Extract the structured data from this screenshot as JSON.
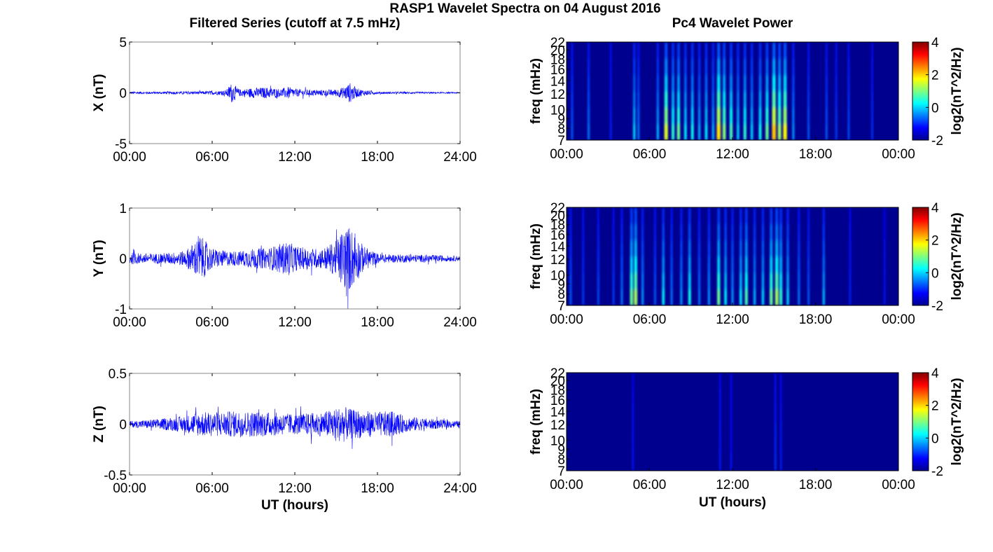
{
  "title": "RASP1 Wavelet Spectra on 04 August 2016",
  "left_column_title": "Filtered Series (cutoff at 7.5 mHz)",
  "right_column_title": "Pc4 Wavelet Power",
  "x_axis_label": "UT (hours)",
  "chart_data": [
    {
      "type": "line",
      "name": "X",
      "ylabel": "X (nT)",
      "ylim": [
        -5,
        5
      ],
      "yticks": [
        -5,
        0,
        5
      ],
      "ytick_labels": [
        "-5",
        "0",
        "5"
      ],
      "xlim": [
        0,
        24
      ],
      "xticks": [
        0,
        6,
        12,
        18,
        24
      ],
      "xtick_labels": [
        "00:00",
        "06:00",
        "12:00",
        "18:00",
        "24:00"
      ],
      "color": "#0000ff",
      "baseline_amplitude": 0.1,
      "series": [
        {
          "x": [
            0,
            2,
            4,
            5,
            6,
            7,
            7.4,
            8,
            9,
            10,
            11,
            11.5,
            12,
            13,
            14,
            15,
            15.5,
            16,
            16.5,
            17,
            18,
            20,
            22,
            24
          ],
          "amplitude": [
            0.12,
            0.12,
            0.15,
            0.15,
            0.18,
            0.25,
            1.0,
            0.35,
            0.5,
            0.55,
            0.4,
            0.6,
            0.4,
            0.3,
            0.3,
            0.35,
            0.55,
            1.0,
            0.45,
            0.3,
            0.12,
            0.1,
            0.08,
            0.06
          ]
        }
      ]
    },
    {
      "type": "line",
      "name": "Y",
      "ylabel": "Y (nT)",
      "ylim": [
        -1,
        1
      ],
      "yticks": [
        -1,
        0,
        1
      ],
      "ytick_labels": [
        "-1",
        "0",
        "1"
      ],
      "xlim": [
        0,
        24
      ],
      "xticks": [
        0,
        6,
        12,
        18,
        24
      ],
      "xtick_labels": [
        "00:00",
        "06:00",
        "12:00",
        "18:00",
        "24:00"
      ],
      "color": "#0000ff",
      "series": [
        {
          "x": [
            0,
            1,
            2,
            3,
            4,
            4.8,
            5,
            6,
            7,
            8,
            9,
            10,
            11,
            11.5,
            12,
            13,
            14,
            15,
            15.5,
            16,
            17,
            18,
            19,
            20,
            22,
            24
          ],
          "amplitude": [
            0.12,
            0.1,
            0.1,
            0.12,
            0.15,
            0.35,
            0.5,
            0.2,
            0.15,
            0.15,
            0.2,
            0.2,
            0.3,
            0.35,
            0.25,
            0.2,
            0.2,
            0.35,
            0.6,
            0.65,
            0.25,
            0.1,
            0.08,
            0.08,
            0.07,
            0.05
          ]
        }
      ]
    },
    {
      "type": "line",
      "name": "Z",
      "ylabel": "Z (nT)",
      "ylim": [
        -0.5,
        0.5
      ],
      "yticks": [
        -0.5,
        0,
        0.5
      ],
      "ytick_labels": [
        "-0.5",
        "0",
        "0.5"
      ],
      "xlim": [
        0,
        24
      ],
      "xticks": [
        0,
        6,
        12,
        18,
        24
      ],
      "xtick_labels": [
        "00:00",
        "06:00",
        "12:00",
        "18:00",
        "24:00"
      ],
      "xlabel": "UT (hours)",
      "color": "#0000ff",
      "series": [
        {
          "x": [
            0,
            2,
            4,
            5,
            6,
            8,
            10,
            12,
            14,
            15.5,
            16,
            18,
            19,
            20,
            22,
            24
          ],
          "amplitude": [
            0.03,
            0.05,
            0.08,
            0.12,
            0.12,
            0.13,
            0.12,
            0.1,
            0.12,
            0.18,
            0.15,
            0.12,
            0.13,
            0.08,
            0.05,
            0.03
          ]
        }
      ]
    },
    {
      "type": "heatmap",
      "name": "X wavelet power",
      "ylabel": "freq (mHz)",
      "ylim": [
        7,
        22
      ],
      "yticks": [
        7,
        8,
        9,
        10,
        12,
        14,
        16,
        18,
        20,
        22
      ],
      "ytick_labels": [
        "7",
        "8",
        "9",
        "10",
        "12",
        "14",
        "16",
        "18",
        "20",
        "22"
      ],
      "xlim": [
        0,
        24
      ],
      "xticks": [
        0,
        6,
        12,
        18,
        24
      ],
      "xtick_labels": [
        "00:00",
        "06:00",
        "12:00",
        "18:00",
        "00:00"
      ],
      "colorbar_label": "log2(nT^2/Hz)",
      "colorbar_ticks": [
        "4",
        "2",
        "0",
        "-2"
      ],
      "clim": [
        -2,
        4
      ],
      "colormap": "jet",
      "streaks": [
        {
          "t": 0.4,
          "p": 0.6
        },
        {
          "t": 1.6,
          "p": 0.8
        },
        {
          "t": 3.2,
          "p": 0.2
        },
        {
          "t": 4.9,
          "p": 1.4
        },
        {
          "t": 5.2,
          "p": 0.8
        },
        {
          "t": 6.6,
          "p": 1.2
        },
        {
          "t": 7.2,
          "p": 3.2
        },
        {
          "t": 7.7,
          "p": 2.0
        },
        {
          "t": 8.1,
          "p": 2.4
        },
        {
          "t": 8.6,
          "p": 1.6
        },
        {
          "t": 9.1,
          "p": 1.8
        },
        {
          "t": 9.6,
          "p": 1.2
        },
        {
          "t": 10.1,
          "p": 1.6
        },
        {
          "t": 10.6,
          "p": 1.2
        },
        {
          "t": 11.0,
          "p": 3.6
        },
        {
          "t": 11.4,
          "p": 2.6
        },
        {
          "t": 11.9,
          "p": 2.2
        },
        {
          "t": 12.4,
          "p": 1.4
        },
        {
          "t": 12.9,
          "p": 2.0
        },
        {
          "t": 13.4,
          "p": 1.4
        },
        {
          "t": 14.0,
          "p": 1.8
        },
        {
          "t": 14.5,
          "p": 2.4
        },
        {
          "t": 15.0,
          "p": 3.8
        },
        {
          "t": 15.4,
          "p": 2.8
        },
        {
          "t": 15.8,
          "p": 3.4
        },
        {
          "t": 16.4,
          "p": 1.0
        },
        {
          "t": 17.5,
          "p": 0.6
        },
        {
          "t": 18.8,
          "p": 0.6
        },
        {
          "t": 19.5,
          "p": 0.4
        },
        {
          "t": 20.4,
          "p": 0.5
        },
        {
          "t": 22.1,
          "p": 0.3
        }
      ]
    },
    {
      "type": "heatmap",
      "name": "Y wavelet power",
      "ylabel": "freq (mHz)",
      "ylim": [
        7,
        22
      ],
      "yticks": [
        7,
        8,
        9,
        10,
        12,
        14,
        16,
        18,
        20,
        22
      ],
      "ytick_labels": [
        "7",
        "8",
        "9",
        "10",
        "12",
        "14",
        "16",
        "18",
        "20",
        "22"
      ],
      "xlim": [
        0,
        24
      ],
      "xticks": [
        0,
        6,
        12,
        18,
        24
      ],
      "xtick_labels": [
        "00:00",
        "06:00",
        "12:00",
        "18:00",
        "00:00"
      ],
      "colorbar_label": "log2(nT^2/Hz)",
      "colorbar_ticks": [
        "4",
        "2",
        "0",
        "-2"
      ],
      "clim": [
        -2,
        4
      ],
      "colormap": "jet",
      "streaks": [
        {
          "t": 0.3,
          "p": 0.6
        },
        {
          "t": 1.2,
          "p": 0.4
        },
        {
          "t": 2.3,
          "p": 0.5
        },
        {
          "t": 3.4,
          "p": 0.4
        },
        {
          "t": 4.0,
          "p": 0.8
        },
        {
          "t": 4.7,
          "p": 2.4
        },
        {
          "t": 5.0,
          "p": 2.8
        },
        {
          "t": 5.5,
          "p": 1.0
        },
        {
          "t": 6.4,
          "p": 0.6
        },
        {
          "t": 7.0,
          "p": 1.6
        },
        {
          "t": 7.6,
          "p": 0.8
        },
        {
          "t": 8.3,
          "p": 1.0
        },
        {
          "t": 8.9,
          "p": 1.8
        },
        {
          "t": 9.6,
          "p": 0.8
        },
        {
          "t": 10.3,
          "p": 1.0
        },
        {
          "t": 11.0,
          "p": 2.4
        },
        {
          "t": 11.5,
          "p": 1.6
        },
        {
          "t": 12.0,
          "p": 1.0
        },
        {
          "t": 12.6,
          "p": 1.6
        },
        {
          "t": 13.0,
          "p": 2.2
        },
        {
          "t": 13.6,
          "p": 1.2
        },
        {
          "t": 14.2,
          "p": 1.4
        },
        {
          "t": 14.8,
          "p": 2.4
        },
        {
          "t": 15.2,
          "p": 2.8
        },
        {
          "t": 15.5,
          "p": 2.0
        },
        {
          "t": 16.0,
          "p": 1.4
        },
        {
          "t": 16.8,
          "p": 0.8
        },
        {
          "t": 17.5,
          "p": 0.6
        },
        {
          "t": 18.6,
          "p": 1.2
        },
        {
          "t": 20.5,
          "p": 0.2
        },
        {
          "t": 23.0,
          "p": 0.1
        }
      ]
    },
    {
      "type": "heatmap",
      "name": "Z wavelet power",
      "ylabel": "freq (mHz)",
      "ylim": [
        7,
        22
      ],
      "yticks": [
        7,
        8,
        9,
        10,
        12,
        14,
        16,
        18,
        20,
        22
      ],
      "ytick_labels": [
        "7",
        "8",
        "9",
        "10",
        "12",
        "14",
        "16",
        "18",
        "20",
        "22"
      ],
      "xlim": [
        0,
        24
      ],
      "xticks": [
        0,
        6,
        12,
        18,
        24
      ],
      "xtick_labels": [
        "00:00",
        "06:00",
        "12:00",
        "18:00",
        "00:00"
      ],
      "xlabel": "UT (hours)",
      "colorbar_label": "log2(nT^2/Hz)",
      "colorbar_ticks": [
        "4",
        "2",
        "0",
        "-2"
      ],
      "clim": [
        -2,
        4
      ],
      "colormap": "jet",
      "streaks": [
        {
          "t": 4.8,
          "p": 0.1
        },
        {
          "t": 11.1,
          "p": 0.15
        },
        {
          "t": 11.9,
          "p": 0.1
        },
        {
          "t": 15.1,
          "p": 0.3
        },
        {
          "t": 15.5,
          "p": 0.15
        }
      ]
    }
  ]
}
